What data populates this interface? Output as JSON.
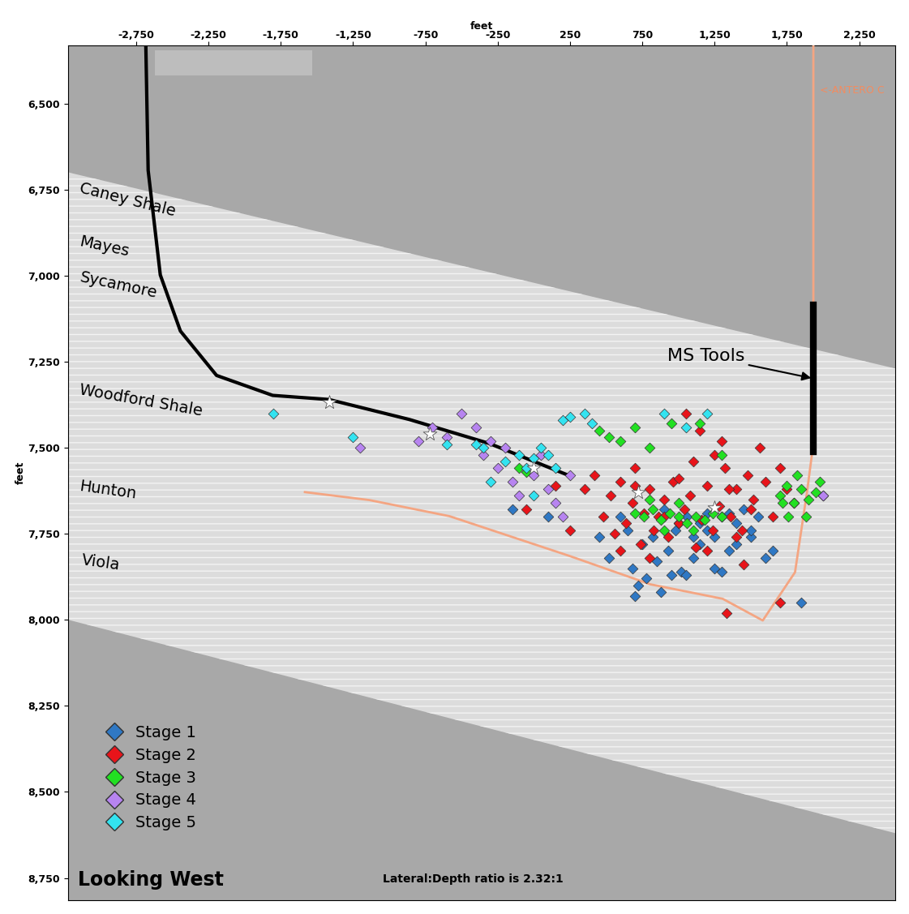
{
  "chart_data": {
    "type": "scatter",
    "x_label": "feet",
    "y_label": "feet",
    "xlim": [
      -3220,
      2500
    ],
    "ylim": [
      8815,
      6332
    ],
    "xticks": [
      {
        "value": -2750,
        "label": "-2,750"
      },
      {
        "value": -2250,
        "label": "-2,250"
      },
      {
        "value": -1750,
        "label": "-1,750"
      },
      {
        "value": -1250,
        "label": "-1,250"
      },
      -750,
      -250,
      250,
      750,
      {
        "value": 1250,
        "label": "1,250"
      },
      {
        "value": 1750,
        "label": "1,750"
      },
      {
        "value": 2250,
        "label": "2,250"
      }
    ],
    "yticks": [
      {
        "value": 6500,
        "label": "6,500"
      },
      {
        "value": 6750,
        "label": "6,750"
      },
      {
        "value": 7000,
        "label": "7,000"
      },
      {
        "value": 7250,
        "label": "7,250"
      },
      {
        "value": 7500,
        "label": "7,500"
      },
      {
        "value": 7750,
        "label": "7,750"
      },
      {
        "value": 8000,
        "label": "8,000"
      },
      {
        "value": 8250,
        "label": "8,250"
      },
      {
        "value": 8500,
        "label": "8,500"
      },
      {
        "value": 8750,
        "label": "8,750"
      }
    ],
    "legend": "lower left",
    "formation_band": {
      "top": {
        "x": [
          -3220,
          2500
        ],
        "y": [
          6700,
          7270
        ]
      },
      "bottom": {
        "x": [
          -3220,
          2500
        ],
        "y": [
          8000,
          8620
        ]
      }
    },
    "formations": [
      "Caney Shale",
      "Mayes",
      "Sycamore",
      "Woodford Shale",
      "Hunton",
      "Viola"
    ],
    "wells": [
      {
        "color": "#000000",
        "x": [
          -2683,
          -2667,
          -2583,
          -2444,
          -2194,
          -1806,
          -1417,
          -861,
          -306,
          250
        ],
        "y": [
          6332,
          6694,
          6998,
          7161,
          7290,
          7348,
          7360,
          7418,
          7488,
          7582
        ]
      },
      {
        "label": "<-ANTERO C",
        "color": "#f4a582",
        "x": [
          1933,
          1933,
          1889,
          1806,
          1583,
          1306,
          806,
          250,
          -583,
          -1139,
          -1583
        ],
        "y": [
          6332,
          7488,
          7629,
          7862,
          8002,
          7939,
          7897,
          7815,
          7699,
          7652,
          7629
        ]
      }
    ],
    "ms_tools": {
      "label": "MS Tools",
      "x": [
        1933,
        1933
      ],
      "y": [
        7086,
        7512
      ]
    },
    "perforations": {
      "x": [
        -1417,
        -722,
        0,
        722,
        1250
      ],
      "y": [
        7367,
        7460,
        7558,
        7629,
        7675
      ]
    },
    "annotations": [
      "Looking West",
      "Lateral:Depth ratio is 2.32:1"
    ],
    "series": [
      {
        "name": "Stage 1",
        "color": "#2f78c4",
        "marker": "diamond",
        "x": [
          450,
          520,
          600,
          680,
          720,
          780,
          820,
          880,
          930,
          980,
          1020,
          1060,
          1100,
          1150,
          1200,
          1250,
          1300,
          1350,
          1400,
          1450,
          1500,
          1550,
          1600,
          1650,
          900,
          1000,
          1100,
          1200,
          750,
          650,
          850,
          1050,
          1250,
          1150,
          950,
          1300,
          1400,
          700,
          1500,
          1350,
          -150,
          100,
          1850,
          2000
        ],
        "y": [
          7760,
          7820,
          7700,
          7850,
          7900,
          7880,
          7760,
          7920,
          7800,
          7740,
          7860,
          7700,
          7820,
          7780,
          7740,
          7760,
          7700,
          7800,
          7720,
          7680,
          7760,
          7700,
          7820,
          7800,
          7680,
          7720,
          7760,
          7690,
          7780,
          7740,
          7830,
          7870,
          7850,
          7720,
          7870,
          7860,
          7780,
          7930,
          7740,
          7690,
          7680,
          7700,
          7950,
          7640
        ]
      },
      {
        "name": "Stage 2",
        "color": "#e8141a",
        "marker": "diamond",
        "x": [
          350,
          420,
          480,
          530,
          560,
          600,
          640,
          680,
          700,
          740,
          760,
          800,
          830,
          860,
          900,
          930,
          960,
          1000,
          1040,
          1080,
          1120,
          1160,
          1200,
          1240,
          1280,
          1320,
          1360,
          1400,
          1440,
          1480,
          1520,
          1560,
          1600,
          1650,
          1700,
          1750,
          1800,
          600,
          700,
          800,
          900,
          1000,
          1100,
          1200,
          1300,
          1400,
          1500,
          1150,
          1250,
          1350,
          -50,
          150,
          250,
          1050,
          1450,
          1330,
          1700
        ],
        "y": [
          7620,
          7580,
          7700,
          7640,
          7750,
          7600,
          7720,
          7660,
          7610,
          7780,
          7690,
          7620,
          7740,
          7700,
          7650,
          7760,
          7600,
          7720,
          7680,
          7640,
          7790,
          7710,
          7610,
          7740,
          7670,
          7560,
          7700,
          7620,
          7740,
          7580,
          7650,
          7500,
          7600,
          7700,
          7560,
          7620,
          7660,
          7800,
          7560,
          7820,
          7700,
          7590,
          7540,
          7800,
          7480,
          7760,
          7680,
          7450,
          7520,
          7620,
          7680,
          7610,
          7740,
          7400,
          7840,
          7980,
          7950
        ]
      },
      {
        "name": "Stage 3",
        "color": "#22e022",
        "marker": "diamond",
        "x": [
          700,
          760,
          820,
          880,
          940,
          1000,
          1060,
          1120,
          1180,
          1240,
          1300,
          900,
          1000,
          1100,
          800,
          1700,
          1750,
          1800,
          1850,
          1900,
          1950,
          1760,
          1820,
          1880,
          1720,
          450,
          520,
          600,
          700,
          800,
          950,
          1150,
          1300,
          -100,
          -50,
          1980
        ],
        "y": [
          7690,
          7700,
          7680,
          7710,
          7690,
          7700,
          7720,
          7700,
          7710,
          7690,
          7700,
          7740,
          7660,
          7740,
          7650,
          7640,
          7610,
          7660,
          7620,
          7650,
          7630,
          7700,
          7580,
          7700,
          7660,
          7450,
          7470,
          7480,
          7440,
          7500,
          7430,
          7430,
          7520,
          7560,
          7570,
          7600
        ]
      },
      {
        "name": "Stage 4",
        "color": "#b784f0",
        "marker": "diamond",
        "x": [
          -800,
          -700,
          -600,
          -500,
          -350,
          -300,
          -250,
          -150,
          -100,
          0,
          100,
          150,
          200,
          250,
          -400,
          -200,
          50,
          2000,
          -1200
        ],
        "y": [
          7480,
          7440,
          7470,
          7400,
          7520,
          7480,
          7560,
          7600,
          7640,
          7580,
          7620,
          7660,
          7700,
          7580,
          7440,
          7500,
          7520,
          7640,
          7500
        ]
      },
      {
        "name": "Stage 5",
        "color": "#33e3f0",
        "marker": "diamond",
        "x": [
          -1800,
          -1250,
          -600,
          -400,
          -350,
          -200,
          -100,
          -50,
          0,
          50,
          100,
          200,
          250,
          350,
          400,
          -300,
          900,
          1050,
          1200,
          0,
          150
        ],
        "y": [
          7400,
          7470,
          7490,
          7490,
          7500,
          7540,
          7520,
          7560,
          7530,
          7500,
          7520,
          7420,
          7410,
          7400,
          7430,
          7600,
          7400,
          7440,
          7400,
          7640,
          7560
        ]
      }
    ]
  }
}
